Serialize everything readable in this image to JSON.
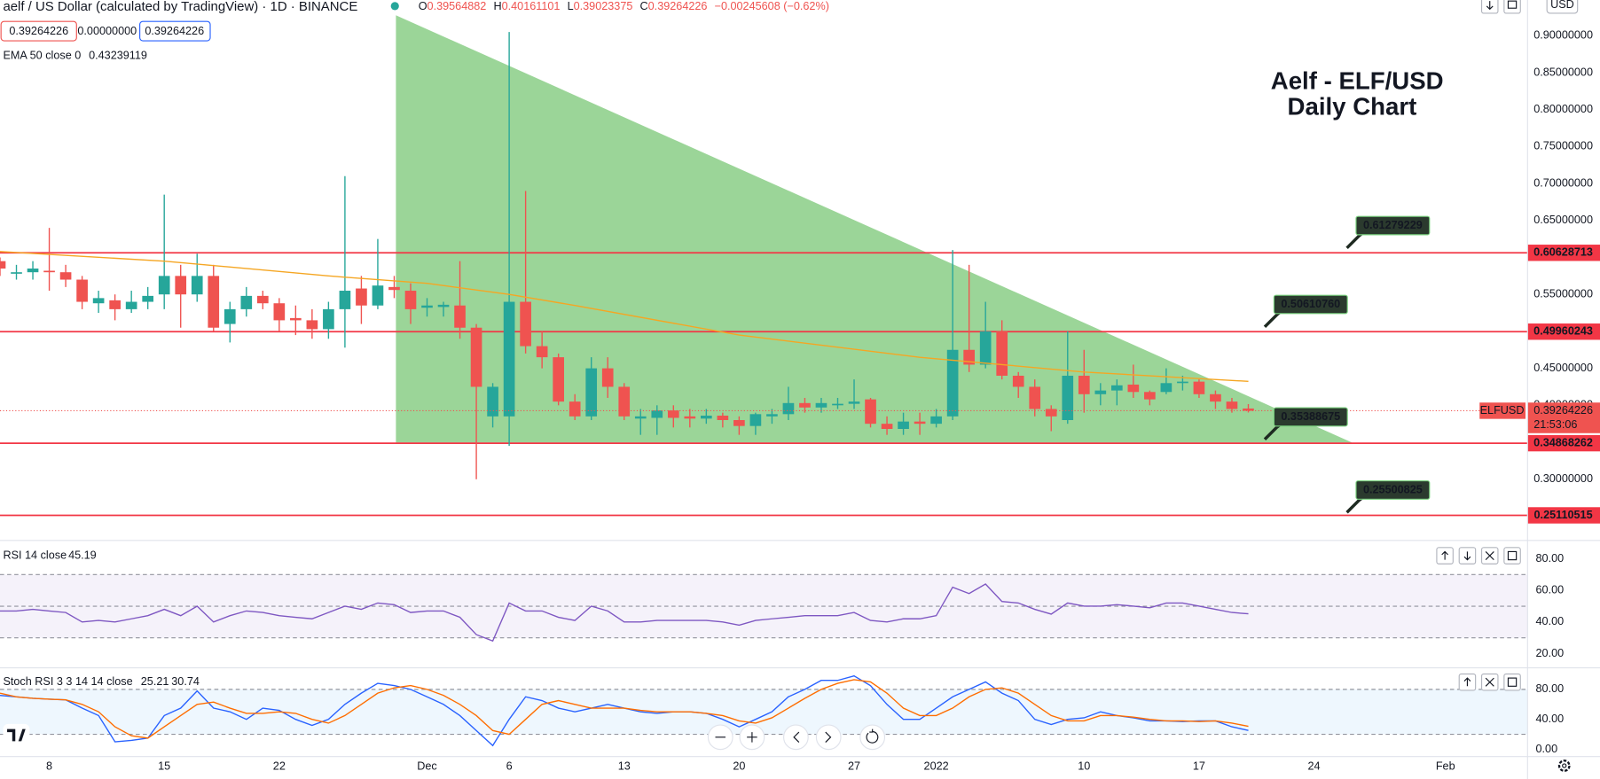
{
  "chart_data": {
    "type": "candlestick",
    "header": "aelf / US Dollar (calculated by TradingView) · 1D · BINANCE",
    "legend_keys": [
      "O",
      "H",
      "L",
      "C"
    ],
    "change": "−0.00245608 (−0.62%)",
    "spread": "0.00000000",
    "title": [
      "Aelf - ELF/USD",
      "Daily Chart"
    ],
    "symbol": "ELFUSD",
    "countdown": "21:53:06",
    "currency": "USD",
    "colors": {
      "up": "#26a69a",
      "down": "#ef5350"
    },
    "x": [
      "2021-11-05",
      "2021-11-06",
      "2021-11-07",
      "2021-11-08",
      "2021-11-09",
      "2021-11-10",
      "2021-11-11",
      "2021-11-12",
      "2021-11-13",
      "2021-11-14",
      "2021-11-15",
      "2021-11-16",
      "2021-11-17",
      "2021-11-18",
      "2021-11-19",
      "2021-11-20",
      "2021-11-21",
      "2021-11-22",
      "2021-11-23",
      "2021-11-24",
      "2021-11-25",
      "2021-11-26",
      "2021-11-27",
      "2021-11-28",
      "2021-11-29",
      "2021-11-30",
      "2021-12-01",
      "2021-12-02",
      "2021-12-03",
      "2021-12-04",
      "2021-12-05",
      "2021-12-06",
      "2021-12-07",
      "2021-12-08",
      "2021-12-09",
      "2021-12-10",
      "2021-12-11",
      "2021-12-12",
      "2021-12-13",
      "2021-12-14",
      "2021-12-15",
      "2021-12-16",
      "2021-12-17",
      "2021-12-18",
      "2021-12-19",
      "2021-12-20",
      "2021-12-21",
      "2021-12-22",
      "2021-12-23",
      "2021-12-24",
      "2021-12-25",
      "2021-12-26",
      "2021-12-27",
      "2021-12-28",
      "2021-12-29",
      "2021-12-30",
      "2021-12-31",
      "2022-01-01",
      "2022-01-02",
      "2022-01-03",
      "2022-01-04",
      "2022-01-05",
      "2022-01-06",
      "2022-01-07",
      "2022-01-08",
      "2022-01-09",
      "2022-01-10",
      "2022-01-11",
      "2022-01-12",
      "2022-01-13",
      "2022-01-14",
      "2022-01-15",
      "2022-01-16",
      "2022-01-17",
      "2022-01-18",
      "2022-01-19",
      "2022-01-20"
    ],
    "open": [
      0.595,
      0.578,
      0.58,
      0.582,
      0.58,
      0.57,
      0.538,
      0.542,
      0.53,
      0.54,
      0.55,
      0.575,
      0.55,
      0.575,
      0.51,
      0.53,
      0.548,
      0.538,
      0.518,
      0.515,
      0.503,
      0.53,
      0.558,
      0.535,
      0.56,
      0.555,
      0.532,
      0.533,
      0.535,
      0.505,
      0.385,
      0.385,
      0.54,
      0.48,
      0.465,
      0.405,
      0.385,
      0.45,
      0.425,
      0.382,
      0.383,
      0.393,
      0.385,
      0.382,
      0.386,
      0.38,
      0.372,
      0.385,
      0.388,
      0.403,
      0.397,
      0.4,
      0.402,
      0.408,
      0.375,
      0.368,
      0.378,
      0.375,
      0.385,
      0.475,
      0.455,
      0.5,
      0.44,
      0.425,
      0.395,
      0.38,
      0.44,
      0.415,
      0.42,
      0.428,
      0.418,
      0.418,
      0.43,
      0.432,
      0.415,
      0.405,
      0.39564882
    ],
    "high": [
      0.6,
      0.59,
      0.595,
      0.64,
      0.59,
      0.575,
      0.555,
      0.55,
      0.555,
      0.56,
      0.685,
      0.59,
      0.605,
      0.59,
      0.54,
      0.56,
      0.555,
      0.545,
      0.535,
      0.53,
      0.54,
      0.71,
      0.575,
      0.625,
      0.575,
      0.565,
      0.545,
      0.54,
      0.595,
      0.51,
      0.43,
      0.905,
      0.69,
      0.5,
      0.47,
      0.415,
      0.465,
      0.465,
      0.43,
      0.395,
      0.4,
      0.4,
      0.395,
      0.395,
      0.39,
      0.385,
      0.39,
      0.395,
      0.425,
      0.41,
      0.41,
      0.41,
      0.435,
      0.41,
      0.385,
      0.39,
      0.39,
      0.395,
      0.61,
      0.59,
      0.54,
      0.515,
      0.445,
      0.435,
      0.4,
      0.5,
      0.475,
      0.43,
      0.435,
      0.455,
      0.42,
      0.45,
      0.44,
      0.435,
      0.42,
      0.41,
      0.40161101
    ],
    "low": [
      0.575,
      0.57,
      0.57,
      0.555,
      0.56,
      0.53,
      0.525,
      0.515,
      0.525,
      0.53,
      0.53,
      0.505,
      0.54,
      0.5,
      0.485,
      0.52,
      0.53,
      0.5,
      0.495,
      0.49,
      0.49,
      0.478,
      0.51,
      0.53,
      0.545,
      0.51,
      0.52,
      0.52,
      0.49,
      0.3,
      0.37,
      0.345,
      0.47,
      0.45,
      0.4,
      0.38,
      0.38,
      0.41,
      0.38,
      0.36,
      0.36,
      0.37,
      0.37,
      0.375,
      0.37,
      0.36,
      0.36,
      0.375,
      0.38,
      0.39,
      0.39,
      0.395,
      0.395,
      0.37,
      0.36,
      0.36,
      0.36,
      0.37,
      0.38,
      0.445,
      0.45,
      0.435,
      0.41,
      0.385,
      0.365,
      0.375,
      0.39,
      0.4,
      0.4,
      0.41,
      0.4,
      0.415,
      0.42,
      0.41,
      0.395,
      0.39,
      0.39023375
    ],
    "close": [
      0.585,
      0.58,
      0.585,
      0.58,
      0.57,
      0.54,
      0.545,
      0.53,
      0.54,
      0.548,
      0.575,
      0.55,
      0.575,
      0.505,
      0.53,
      0.548,
      0.538,
      0.515,
      0.515,
      0.503,
      0.53,
      0.555,
      0.535,
      0.562,
      0.556,
      0.53,
      0.535,
      0.536,
      0.505,
      0.425,
      0.425,
      0.54,
      0.48,
      0.465,
      0.405,
      0.385,
      0.45,
      0.425,
      0.385,
      0.385,
      0.393,
      0.383,
      0.382,
      0.386,
      0.38,
      0.372,
      0.388,
      0.388,
      0.403,
      0.397,
      0.403,
      0.402,
      0.405,
      0.375,
      0.368,
      0.378,
      0.375,
      0.385,
      0.475,
      0.455,
      0.5,
      0.44,
      0.425,
      0.395,
      0.385,
      0.44,
      0.415,
      0.42,
      0.427,
      0.418,
      0.408,
      0.43,
      0.432,
      0.415,
      0.405,
      0.395,
      0.39264226
    ],
    "xlim": [
      "2021-11-05",
      "2022-02-06"
    ],
    "xticks": [
      {
        "value": "2021-11-08",
        "label": "8"
      },
      {
        "value": "2021-11-15",
        "label": "15"
      },
      {
        "value": "2021-11-22",
        "label": "22"
      },
      {
        "value": "2021-12-01",
        "label": "Dec"
      },
      {
        "value": "2021-12-06",
        "label": "6"
      },
      {
        "value": "2021-12-13",
        "label": "13"
      },
      {
        "value": "2021-12-20",
        "label": "20"
      },
      {
        "value": "2021-12-27",
        "label": "27"
      },
      {
        "value": "2022-01-01",
        "label": "2022"
      },
      {
        "value": "2022-01-10",
        "label": "10"
      },
      {
        "value": "2022-01-17",
        "label": "17"
      },
      {
        "value": "2022-01-24",
        "label": "24"
      },
      {
        "value": "2022-02-01",
        "label": "Feb"
      }
    ],
    "ylim": [
      0.2172,
      0.9483
    ],
    "yticks": [
      {
        "value": 0.3,
        "label": "0.30000000"
      },
      {
        "value": 0.35,
        "label": "0.35000000"
      },
      {
        "value": 0.4,
        "label": "0.40000000"
      },
      {
        "value": 0.45,
        "label": "0.45000000"
      },
      {
        "value": 0.5,
        "label": "0.50000000"
      },
      {
        "value": 0.55,
        "label": "0.55000000"
      },
      {
        "value": 0.6,
        "label": "0.60000000"
      },
      {
        "value": 0.65,
        "label": "0.65000000"
      },
      {
        "value": 0.7,
        "label": "0.70000000"
      },
      {
        "value": 0.75,
        "label": "0.75000000"
      },
      {
        "value": 0.8,
        "label": "0.80000000"
      },
      {
        "value": 0.85,
        "label": "0.85000000"
      },
      {
        "value": 0.9,
        "label": "0.90000000"
      }
    ],
    "ema": {
      "name": "EMA 50 close 0",
      "color": "#f5a623",
      "x": [
        "2021-11-05",
        "2021-11-15",
        "2021-11-25",
        "2021-12-01",
        "2021-12-06",
        "2021-12-10",
        "2021-12-20",
        "2021-12-31",
        "2022-01-05",
        "2022-01-10",
        "2022-01-20"
      ],
      "values": [
        0.608,
        0.595,
        0.575,
        0.565,
        0.55,
        0.535,
        0.495,
        0.465,
        0.455,
        0.445,
        0.43239119
      ]
    },
    "levels": {
      "color": "#f23645",
      "values": [
        0.60628713,
        0.49960243,
        0.34868262,
        0.25110515
      ]
    },
    "callouts": {
      "x": [
        "2022-01-26",
        "2022-01-21",
        "2022-01-21",
        "2022-01-26"
      ],
      "values": [
        0.61279229,
        0.5061076,
        0.35388675,
        0.25500825
      ],
      "value_labels": [
        "0.61279229",
        "0.50610760",
        "0.35388675",
        "0.25500825"
      ]
    },
    "rsi": {
      "name": "RSI 14 close",
      "color": "#7e57c2",
      "values": [
        47,
        47,
        48,
        47,
        46,
        40,
        41,
        40,
        42,
        44,
        48,
        44,
        50,
        40,
        44,
        47,
        46,
        44,
        43,
        42,
        46,
        50,
        48,
        52,
        51,
        46,
        47,
        47,
        43,
        32,
        28,
        52,
        47,
        47,
        43,
        41,
        50,
        47,
        40,
        40,
        41,
        41,
        41,
        41,
        40,
        38,
        41,
        42,
        43,
        44,
        44,
        44,
        46,
        41,
        40,
        42,
        42,
        44,
        62,
        58,
        64,
        53,
        52,
        48,
        45,
        52,
        50,
        50,
        51,
        50,
        49,
        52,
        52,
        50,
        48,
        46,
        45.19
      ],
      "ylim": [
        11,
        89.7
      ],
      "yticks": [
        {
          "value": 20,
          "label": "20.00"
        },
        {
          "value": 40,
          "label": "40.00"
        },
        {
          "value": 60,
          "label": "60.00"
        },
        {
          "value": 80,
          "label": "80.00"
        }
      ],
      "bands": [
        70,
        50,
        30
      ]
    },
    "stoch_rsi": {
      "name": "Stoch RSI 3 3 14 14 close",
      "ylim": [
        -9.7,
        106
      ],
      "yticks": [
        {
          "value": 0,
          "label": "0.00"
        },
        {
          "value": 40,
          "label": "40.00"
        },
        {
          "value": 80,
          "label": "80.00"
        }
      ],
      "bands": [
        80,
        20
      ],
      "series": [
        {
          "color": "#2962ff",
          "values": [
            72,
            70,
            68,
            67,
            66,
            55,
            45,
            10,
            12,
            15,
            45,
            55,
            78,
            55,
            50,
            40,
            55,
            52,
            40,
            32,
            40,
            60,
            75,
            88,
            85,
            80,
            70,
            60,
            45,
            25,
            5,
            40,
            70,
            65,
            55,
            50,
            55,
            60,
            55,
            50,
            48,
            50,
            50,
            48,
            40,
            30,
            40,
            50,
            70,
            80,
            92,
            92,
            98,
            85,
            60,
            40,
            40,
            55,
            70,
            80,
            90,
            75,
            65,
            40,
            33,
            40,
            42,
            50,
            45,
            42,
            38,
            38,
            37,
            38,
            38,
            30,
            25.21
          ]
        },
        {
          "color": "#ff6d00",
          "values": [
            75,
            70,
            68,
            67,
            66,
            60,
            50,
            30,
            18,
            15,
            30,
            45,
            60,
            63,
            55,
            48,
            48,
            50,
            48,
            40,
            35,
            45,
            60,
            75,
            82,
            85,
            80,
            72,
            60,
            45,
            25,
            20,
            40,
            60,
            65,
            60,
            55,
            55,
            55,
            52,
            50,
            50,
            50,
            48,
            45,
            38,
            35,
            42,
            55,
            68,
            80,
            88,
            93,
            90,
            75,
            55,
            45,
            45,
            55,
            70,
            80,
            82,
            75,
            60,
            45,
            38,
            38,
            45,
            45,
            43,
            40,
            38,
            38,
            37,
            38,
            35,
            30.74
          ]
        }
      ]
    }
  }
}
